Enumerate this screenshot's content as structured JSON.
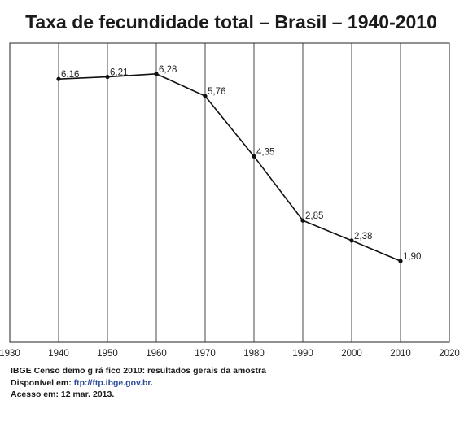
{
  "chart_data": {
    "type": "line",
    "title": "Taxa de fecundidade total – Brasil – 1940-2010",
    "xlabel": "",
    "ylabel": "",
    "xlim": [
      1930,
      2020
    ],
    "x_ticks": [
      "1930",
      "1940",
      "1950",
      "1960",
      "1970",
      "1980",
      "1990",
      "2000",
      "2010",
      "2020"
    ],
    "ylim": [
      0,
      7
    ],
    "grid": "vertical",
    "series": [
      {
        "x": [
          1940,
          1950,
          1960,
          1970,
          1980,
          1990,
          2000,
          2010
        ],
        "values": [
          6.16,
          6.21,
          6.28,
          5.76,
          4.35,
          2.85,
          2.38,
          1.9
        ],
        "labels": [
          "6,16",
          "6,21",
          "6,28",
          "5,76",
          "4,35",
          "2,85",
          "2,38",
          "1,90"
        ]
      }
    ]
  },
  "source": {
    "line1": "IBGE  Censo demo g rá fico  2010:  resultados gerais da amostra",
    "line2_prefix": "Disponível em:  ",
    "line2_link": "ftp://ftp.ibge.gov.br",
    "line2_suffix": ".",
    "line3": "Acesso em:  12 mar. 2013."
  }
}
